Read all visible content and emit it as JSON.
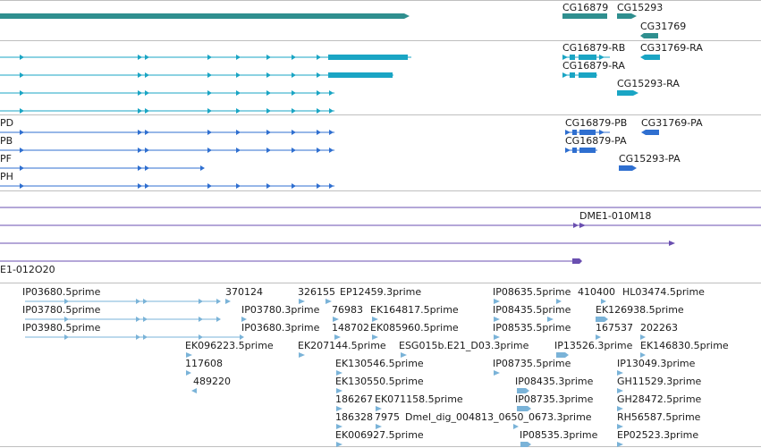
{
  "colors": {
    "gene": "#2f8f8f",
    "mrna": "#1aa5c4",
    "protein": "#2f6fd0",
    "clone": "#6a4fb0",
    "est": "#7ab3d8",
    "divider": "#bfbfbf"
  },
  "tracks": {
    "gene": {
      "labels": [
        "CG16879",
        "CG15293",
        "CG31769"
      ]
    },
    "mrna": {
      "labels": [
        "CG16879-RB",
        "CG31769-RA",
        "CG16879-RA",
        "CG15293-RA"
      ]
    },
    "protein": {
      "row_labels": [
        "PD",
        "PB",
        "PF",
        "PH"
      ],
      "labels": [
        "CG16879-PB",
        "CG31769-PA",
        "CG16879-PA",
        "CG15293-PA"
      ]
    },
    "clone": {
      "labels": [
        "DME1-010M18",
        "E1-012O20"
      ]
    },
    "est": {
      "labels": [
        "IP03680.5prime",
        "IP03780.5prime",
        "IP03980.5prime",
        "370124",
        "IP03780.3prime",
        "IP03680.3prime",
        "326155",
        "EP12459.3prime",
        "76983",
        "148702",
        "EK164817.5prime",
        "EK085960.5prime",
        "EK096223.5prime",
        "117608",
        "489220",
        "EK207144.5prime",
        "ESG015b.E21_D03.3prime",
        "EK130546.5prime",
        "EK130550.5prime",
        "186267",
        "EK071158.5prime",
        "186328",
        "7975",
        "Dmel_dig_004813_0650_0673.3prime",
        "EK006927.5prime",
        "IP08635.5prime",
        "IP08435.5prime",
        "IP08535.5prime",
        "IP13526.3prime",
        "IP08735.5prime",
        "IP08435.3prime",
        "IP08735.3prime",
        "IP08535.3prime",
        "410400",
        "HL03474.5prime",
        "EK126938.5prime",
        "167537",
        "202263",
        "EK146830.5prime",
        "IP13049.3prime",
        "GH11529.3prime",
        "GH28472.5prime",
        "RH56587.5prime",
        "EP02523.3prime"
      ]
    }
  }
}
